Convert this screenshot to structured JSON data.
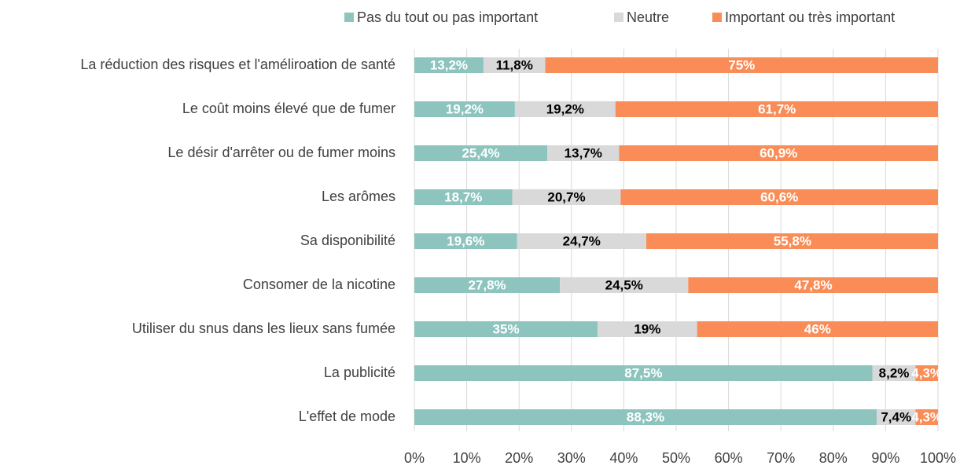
{
  "chart_data": {
    "type": "stacked_bar_horizontal",
    "categories": [
      "La réduction des risques et l'améliroation de santé",
      "Le coût moins élevé que de fumer",
      "Le désir d'arrêter ou de fumer moins",
      "Les arômes",
      "Sa disponibilité",
      "Consomer de la nicotine",
      "Utiliser du snus dans les lieux sans fumée",
      "La publicité",
      "L'effet de mode"
    ],
    "series": [
      {
        "name": "Pas du tout ou pas important",
        "color": "#8dc4be",
        "label_color": "#ffffff",
        "values": [
          13.2,
          19.2,
          25.4,
          18.7,
          19.6,
          27.8,
          35,
          87.5,
          88.3
        ],
        "value_labels": [
          "13,2%",
          "19,2%",
          "25,4%",
          "18,7%",
          "19,6%",
          "27,8%",
          "35%",
          "87,5%",
          "88,3%"
        ]
      },
      {
        "name": "Neutre",
        "color": "#d9d9d9",
        "label_color": "#000000",
        "values": [
          11.8,
          19.2,
          13.7,
          20.7,
          24.7,
          24.5,
          19,
          8.2,
          7.4
        ],
        "value_labels": [
          "11,8%",
          "19,2%",
          "13,7%",
          "20,7%",
          "24,7%",
          "24,5%",
          "19%",
          "8,2%",
          "7,4%"
        ]
      },
      {
        "name": "Important ou très important",
        "color": "#f98c57",
        "label_color": "#ffffff",
        "values": [
          75,
          61.7,
          60.9,
          60.6,
          55.8,
          47.8,
          46,
          4.3,
          4.3
        ],
        "value_labels": [
          "75%",
          "61,7%",
          "60,9%",
          "60,6%",
          "55,8%",
          "47,8%",
          "46%",
          "4,3%",
          "4,3%"
        ]
      }
    ],
    "xlim": [
      0,
      100
    ],
    "xticks": [
      {
        "value": 0,
        "label": "0%"
      },
      {
        "value": 10,
        "label": "10%"
      },
      {
        "value": 20,
        "label": "20%"
      },
      {
        "value": 30,
        "label": "30%"
      },
      {
        "value": 40,
        "label": "40%"
      },
      {
        "value": 50,
        "label": "50%"
      },
      {
        "value": 60,
        "label": "60%"
      },
      {
        "value": 70,
        "label": "70%"
      },
      {
        "value": 80,
        "label": "80%"
      },
      {
        "value": 90,
        "label": "90%"
      },
      {
        "value": 100,
        "label": "100%"
      }
    ],
    "grid": true,
    "legend": "top"
  }
}
